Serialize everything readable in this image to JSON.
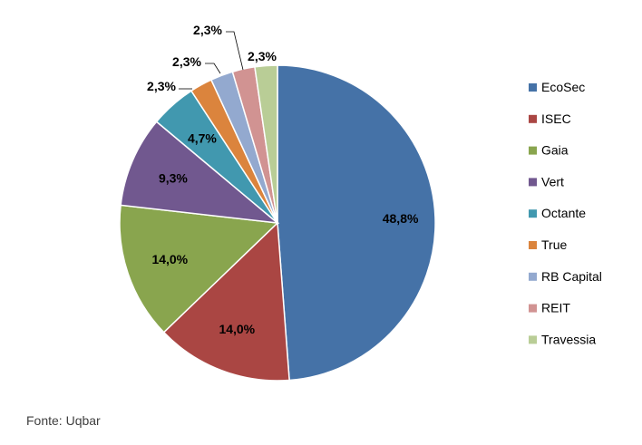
{
  "chart_data": {
    "type": "pie",
    "title": "",
    "categories": [
      "EcoSec",
      "ISEC",
      "Gaia",
      "Vert",
      "Octante",
      "True",
      "RB Capital",
      "REIT",
      "Travessia"
    ],
    "values": [
      48.8,
      14.0,
      14.0,
      9.3,
      4.7,
      2.3,
      2.3,
      2.3,
      2.3
    ],
    "data_labels": [
      "48,8%",
      "14,0%",
      "14,0%",
      "9,3%",
      "4,7%",
      "2,3%",
      "2,3%",
      "2,3%",
      "2,3%"
    ],
    "colors": [
      "#4572A7",
      "#AA4643",
      "#89A54E",
      "#71588F",
      "#4198AF",
      "#DB843D",
      "#93A9CF",
      "#D19392",
      "#B9CD96"
    ],
    "legend_position": "right",
    "start_angle": "12 o'clock",
    "direction": "clockwise"
  },
  "footer": {
    "source": "Fonte: Uqbar"
  }
}
